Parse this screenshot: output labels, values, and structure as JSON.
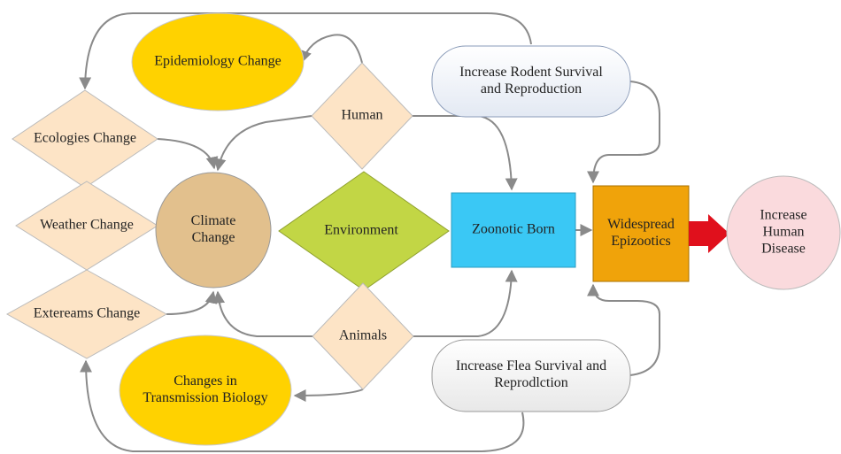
{
  "nodes": [
    {
      "id": "epidemiology",
      "label": [
        "Epidemiology Change"
      ]
    },
    {
      "id": "rodent",
      "label": [
        "Increase Rodent Survival",
        "and Reproduction"
      ]
    },
    {
      "id": "human",
      "label": [
        "Human"
      ]
    },
    {
      "id": "ecologies",
      "label": [
        "Ecologies Change"
      ]
    },
    {
      "id": "weather",
      "label": [
        "Weather Change"
      ]
    },
    {
      "id": "extereams",
      "label": [
        "Extereams Change"
      ]
    },
    {
      "id": "climate",
      "label": [
        "Climate",
        "Change"
      ]
    },
    {
      "id": "environment",
      "label": [
        "Environment"
      ]
    },
    {
      "id": "zoonotic",
      "label": [
        "Zoonotic Born"
      ]
    },
    {
      "id": "epizootics",
      "label": [
        "Widespread",
        "Epizootics"
      ]
    },
    {
      "id": "disease",
      "label": [
        "Increase",
        "Human",
        "Disease"
      ]
    },
    {
      "id": "animals",
      "label": [
        "Animals"
      ]
    },
    {
      "id": "transmission",
      "label": [
        "Changes in",
        "Transmission Biology"
      ]
    },
    {
      "id": "flea",
      "label": [
        "Increase Flea Survival and",
        "Reprodlction"
      ]
    }
  ]
}
